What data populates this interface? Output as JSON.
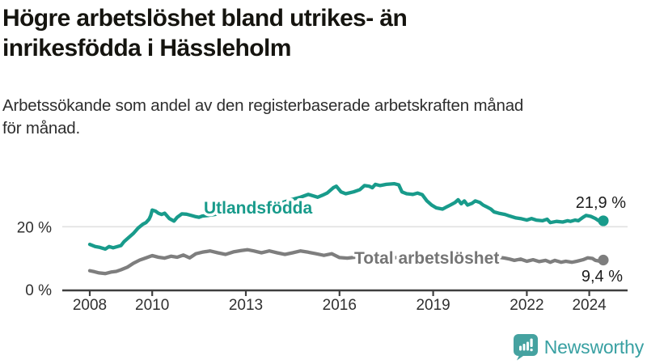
{
  "title": "Högre arbetslöshet bland utrikes- än\ninrikesfödda i Hässleholm",
  "subtitle": "Arbetssökande som andel av den registerbaserade arbetskraften månad\nför månad.",
  "branding": {
    "logo_text": "Newsworthy",
    "logo_icon": "bar-chart-speech-bubble-icon",
    "logo_color": "#45a2a0"
  },
  "chart_data": {
    "type": "line",
    "title": "Högre arbetslöshet bland utrikes- än inrikesfödda i Hässleholm",
    "xlabel": "",
    "ylabel": "Arbetssökande som andel av den registerbaserade arbetskraften",
    "x_axis": {
      "ticks": [
        2008,
        2010,
        2013,
        2016,
        2019,
        2022,
        2024
      ],
      "range": [
        2008,
        2024.6
      ]
    },
    "y_axis": {
      "ticks": [
        {
          "value": 20,
          "label": "20 %"
        },
        {
          "value": 0,
          "label": "0 %"
        }
      ],
      "gridlines": [
        20
      ],
      "range": [
        0,
        36
      ],
      "unit": "%"
    },
    "grid": "horizontal-only",
    "legend_position": "inline-on-line",
    "colors": {
      "axis": "#3f3f3f",
      "gridline": "#e0e0e0"
    },
    "series": [
      {
        "name": "Utlandsfödda",
        "color": "#189b8b",
        "end_value": 21.9,
        "end_label": "21,9 %",
        "points": [
          [
            2008.0,
            14.4
          ],
          [
            2008.17,
            13.7
          ],
          [
            2008.33,
            13.4
          ],
          [
            2008.5,
            12.9
          ],
          [
            2008.62,
            13.7
          ],
          [
            2008.75,
            13.3
          ],
          [
            2009.0,
            14.0
          ],
          [
            2009.1,
            15.3
          ],
          [
            2009.25,
            16.6
          ],
          [
            2009.4,
            17.9
          ],
          [
            2009.55,
            19.6
          ],
          [
            2009.7,
            20.8
          ],
          [
            2009.8,
            21.3
          ],
          [
            2009.9,
            22.4
          ],
          [
            2009.95,
            23.5
          ],
          [
            2010.0,
            25.3
          ],
          [
            2010.1,
            25.0
          ],
          [
            2010.2,
            24.3
          ],
          [
            2010.3,
            23.9
          ],
          [
            2010.4,
            24.3
          ],
          [
            2010.55,
            22.6
          ],
          [
            2010.7,
            21.8
          ],
          [
            2010.8,
            23.0
          ],
          [
            2010.95,
            24.1
          ],
          [
            2011.1,
            24.0
          ],
          [
            2011.25,
            23.6
          ],
          [
            2011.4,
            23.2
          ],
          [
            2011.5,
            23.0
          ],
          [
            2011.6,
            23.4
          ],
          [
            2011.8,
            23.6
          ],
          [
            2012.0,
            23.9
          ],
          [
            2012.2,
            24.3
          ],
          [
            2012.4,
            24.8
          ],
          [
            2012.6,
            24.5
          ],
          [
            2012.8,
            25.1
          ],
          [
            2013.0,
            25.6
          ],
          [
            2013.2,
            26.0
          ],
          [
            2013.4,
            26.4
          ],
          [
            2013.6,
            26.2
          ],
          [
            2013.8,
            26.8
          ],
          [
            2014.0,
            27.3
          ],
          [
            2014.2,
            27.8
          ],
          [
            2014.45,
            28.6
          ],
          [
            2014.6,
            29.0
          ],
          [
            2014.75,
            29.4
          ],
          [
            2015.0,
            30.3
          ],
          [
            2015.3,
            29.4
          ],
          [
            2015.45,
            30.0
          ],
          [
            2015.6,
            30.7
          ],
          [
            2015.8,
            32.4
          ],
          [
            2015.9,
            32.9
          ],
          [
            2016.05,
            31.1
          ],
          [
            2016.2,
            30.5
          ],
          [
            2016.45,
            31.1
          ],
          [
            2016.65,
            31.8
          ],
          [
            2016.8,
            33.1
          ],
          [
            2016.95,
            32.9
          ],
          [
            2017.05,
            32.4
          ],
          [
            2017.15,
            33.5
          ],
          [
            2017.3,
            33.1
          ],
          [
            2017.5,
            33.5
          ],
          [
            2017.75,
            33.7
          ],
          [
            2017.9,
            33.3
          ],
          [
            2018.0,
            31.1
          ],
          [
            2018.15,
            30.5
          ],
          [
            2018.35,
            30.3
          ],
          [
            2018.5,
            30.7
          ],
          [
            2018.65,
            30.2
          ],
          [
            2018.8,
            28.2
          ],
          [
            2018.95,
            26.9
          ],
          [
            2019.1,
            26.0
          ],
          [
            2019.3,
            25.6
          ],
          [
            2019.45,
            26.4
          ],
          [
            2019.55,
            26.9
          ],
          [
            2019.7,
            27.7
          ],
          [
            2019.8,
            28.6
          ],
          [
            2019.9,
            27.3
          ],
          [
            2020.0,
            28.2
          ],
          [
            2020.1,
            26.9
          ],
          [
            2020.25,
            27.5
          ],
          [
            2020.35,
            28.2
          ],
          [
            2020.5,
            27.7
          ],
          [
            2020.6,
            26.9
          ],
          [
            2020.7,
            26.4
          ],
          [
            2020.85,
            25.6
          ],
          [
            2020.95,
            24.7
          ],
          [
            2021.1,
            24.3
          ],
          [
            2021.3,
            23.9
          ],
          [
            2021.45,
            23.4
          ],
          [
            2021.65,
            22.8
          ],
          [
            2021.8,
            22.6
          ],
          [
            2022.0,
            22.1
          ],
          [
            2022.15,
            22.6
          ],
          [
            2022.3,
            22.1
          ],
          [
            2022.5,
            21.9
          ],
          [
            2022.65,
            22.4
          ],
          [
            2022.75,
            21.3
          ],
          [
            2022.95,
            21.7
          ],
          [
            2023.15,
            21.5
          ],
          [
            2023.3,
            21.9
          ],
          [
            2023.4,
            21.7
          ],
          [
            2023.55,
            22.1
          ],
          [
            2023.65,
            21.9
          ],
          [
            2023.8,
            23.0
          ],
          [
            2023.9,
            23.6
          ],
          [
            2024.05,
            23.3
          ],
          [
            2024.2,
            22.6
          ],
          [
            2024.3,
            21.9
          ],
          [
            2024.45,
            21.9
          ]
        ]
      },
      {
        "name": "Total arbetslöshet",
        "color": "#7e7e7e",
        "end_value": 9.4,
        "end_label": "9,4 %",
        "points": [
          [
            2008.0,
            6.0
          ],
          [
            2008.15,
            5.7
          ],
          [
            2008.3,
            5.3
          ],
          [
            2008.5,
            5.1
          ],
          [
            2008.7,
            5.6
          ],
          [
            2008.85,
            5.8
          ],
          [
            2009.0,
            6.3
          ],
          [
            2009.2,
            7.1
          ],
          [
            2009.4,
            8.4
          ],
          [
            2009.6,
            9.4
          ],
          [
            2009.8,
            10.1
          ],
          [
            2010.0,
            10.8
          ],
          [
            2010.2,
            10.3
          ],
          [
            2010.4,
            10.0
          ],
          [
            2010.6,
            10.6
          ],
          [
            2010.8,
            10.3
          ],
          [
            2011.0,
            11.0
          ],
          [
            2011.2,
            10.1
          ],
          [
            2011.4,
            11.4
          ],
          [
            2011.6,
            11.9
          ],
          [
            2011.85,
            12.3
          ],
          [
            2012.1,
            11.7
          ],
          [
            2012.35,
            11.2
          ],
          [
            2012.6,
            12.0
          ],
          [
            2012.85,
            12.4
          ],
          [
            2013.05,
            12.7
          ],
          [
            2013.25,
            12.3
          ],
          [
            2013.5,
            11.7
          ],
          [
            2013.75,
            12.3
          ],
          [
            2014.0,
            11.7
          ],
          [
            2014.25,
            11.2
          ],
          [
            2014.5,
            11.7
          ],
          [
            2014.75,
            12.3
          ],
          [
            2015.0,
            11.9
          ],
          [
            2015.25,
            11.4
          ],
          [
            2015.5,
            10.9
          ],
          [
            2015.75,
            11.4
          ],
          [
            2016.0,
            10.2
          ],
          [
            2016.25,
            10.0
          ],
          [
            2016.5,
            10.3
          ],
          [
            2016.8,
            10.6
          ],
          [
            2017.1,
            10.5
          ],
          [
            2017.4,
            10.3
          ],
          [
            2017.7,
            10.2
          ],
          [
            2018.0,
            10.1
          ],
          [
            2018.3,
            10.0
          ],
          [
            2018.6,
            9.9
          ],
          [
            2018.9,
            9.7
          ],
          [
            2019.2,
            9.6
          ],
          [
            2019.5,
            9.6
          ],
          [
            2019.8,
            9.9
          ],
          [
            2020.1,
            10.6
          ],
          [
            2020.35,
            11.0
          ],
          [
            2020.6,
            10.9
          ],
          [
            2020.85,
            10.6
          ],
          [
            2021.1,
            10.3
          ],
          [
            2021.3,
            10.0
          ],
          [
            2021.45,
            9.7
          ],
          [
            2021.6,
            9.3
          ],
          [
            2021.8,
            9.7
          ],
          [
            2022.0,
            9.0
          ],
          [
            2022.2,
            9.5
          ],
          [
            2022.4,
            8.9
          ],
          [
            2022.6,
            9.3
          ],
          [
            2022.75,
            8.7
          ],
          [
            2022.9,
            9.3
          ],
          [
            2023.1,
            8.7
          ],
          [
            2023.25,
            9.0
          ],
          [
            2023.45,
            8.7
          ],
          [
            2023.6,
            9.0
          ],
          [
            2023.8,
            9.5
          ],
          [
            2023.95,
            10.1
          ],
          [
            2024.1,
            9.9
          ],
          [
            2024.2,
            9.3
          ],
          [
            2024.35,
            9.0
          ],
          [
            2024.45,
            9.4
          ]
        ]
      }
    ]
  }
}
